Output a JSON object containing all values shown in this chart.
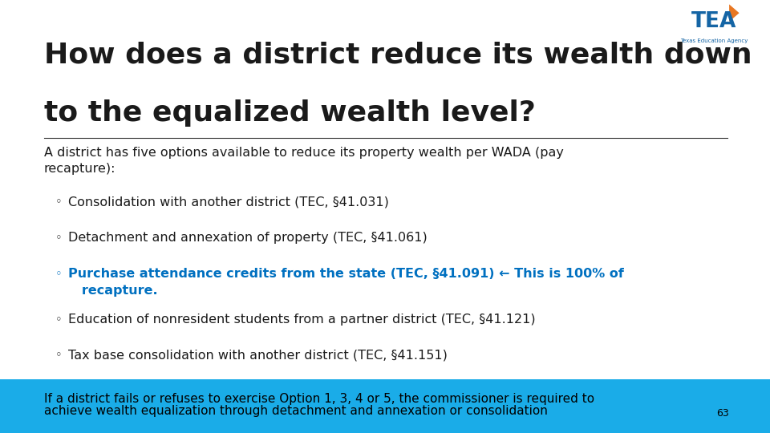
{
  "title_line1": "How does a district reduce its wealth down",
  "title_line2": "to the equalized wealth level?",
  "title_fontsize": 26,
  "title_color": "#1a1a1a",
  "bg_color": "#ffffff",
  "body_text1": "A district has five options available to reduce its property wealth per WADA (pay",
  "body_text2": "recapture):",
  "body_fontsize": 11.5,
  "body_color": "#1a1a1a",
  "bullet_char": "◦",
  "bullets": [
    {
      "text": "Consolidation with another district (TEC, §41.031)",
      "bold": false,
      "color": "#1a1a1a",
      "wrap2": null
    },
    {
      "text": "Detachment and annexation of property (TEC, §41.061)",
      "bold": false,
      "color": "#1a1a1a",
      "wrap2": null
    },
    {
      "text": "Purchase attendance credits from the state (TEC, §41.091) ← This is 100% of",
      "bold": true,
      "color": "#0070c0",
      "wrap2": "   recapture."
    },
    {
      "text": "Education of nonresident students from a partner district (TEC, §41.121)",
      "bold": false,
      "color": "#1a1a1a",
      "wrap2": null
    },
    {
      "text": "Tax base consolidation with another district (TEC, §41.151)",
      "bold": false,
      "color": "#1a1a1a",
      "wrap2": null
    }
  ],
  "bullet_fontsize": 11.5,
  "footer_line1": "If a district fails or refuses to exercise Option 1, 3, 4 or 5, the commissioner is required to",
  "footer_line2": "achieve wealth equalization through detachment and annexation or consolidation",
  "footer_color": "#000000",
  "footer_fontsize": 11.0,
  "footer_bg": "#1aace8",
  "page_num": "63",
  "separator_color": "#333333",
  "slide_bg": "#ffffff"
}
